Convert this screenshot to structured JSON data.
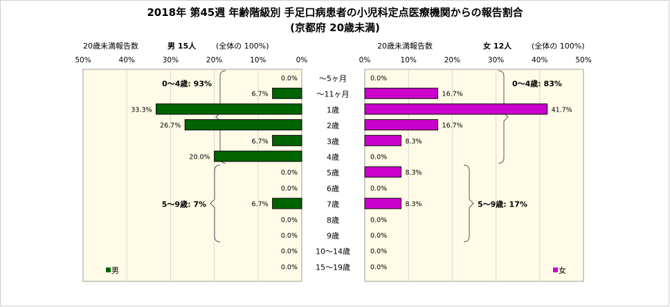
{
  "chart_data": {
    "type": "bar",
    "title": "2018年 第45週 年齢階級別 手足口病患者の小児科定点医療機関からの報告割合",
    "subtitle": "(京都府 20歳未満)",
    "categories": [
      "～5ヶ月",
      "～11ヶ月",
      "1歳",
      "2歳",
      "3歳",
      "4歳",
      "5歳",
      "6歳",
      "7歳",
      "8歳",
      "9歳",
      "10～14歳",
      "15～19歳"
    ],
    "xlim": [
      0,
      50
    ],
    "ticks": [
      0,
      10,
      20,
      30,
      40,
      50
    ],
    "tick_labels": [
      "0%",
      "10%",
      "20%",
      "30%",
      "40%",
      "50%"
    ],
    "series": [
      {
        "name": "男",
        "header_label": "20歳未満報告数",
        "header_count": "男 15人",
        "header_total": "(全体の 100%)",
        "color": "#006400",
        "values": [
          0.0,
          6.7,
          33.3,
          26.7,
          6.7,
          20.0,
          0.0,
          0.0,
          6.7,
          0.0,
          0.0,
          0.0,
          0.0
        ],
        "value_labels": [
          "0.0%",
          "6.7%",
          "33.3%",
          "26.7%",
          "6.7%",
          "20.0%",
          "0.0%",
          "0.0%",
          "6.7%",
          "0.0%",
          "0.0%",
          "0.0%",
          "0.0%"
        ],
        "groups": [
          {
            "label": "0～4歳: 93%",
            "from": 0,
            "to": 5
          },
          {
            "label": "5～9歳: 7%",
            "from": 6,
            "to": 10
          }
        ]
      },
      {
        "name": "女",
        "header_label": "20歳未満報告数",
        "header_count": "女 12人",
        "header_total": "(全体の 100%)",
        "color": "#cc00cc",
        "values": [
          0.0,
          16.7,
          41.7,
          16.7,
          8.3,
          0.0,
          8.3,
          0.0,
          8.3,
          0.0,
          0.0,
          0.0,
          0.0
        ],
        "value_labels": [
          "0.0%",
          "16.7%",
          "41.7%",
          "16.7%",
          "8.3%",
          "0.0%",
          "8.3%",
          "0.0%",
          "8.3%",
          "0.0%",
          "0.0%",
          "0.0%",
          "0.0%"
        ],
        "groups": [
          {
            "label": "0～4歳: 83%",
            "from": 0,
            "to": 5
          },
          {
            "label": "5～9歳: 17%",
            "from": 6,
            "to": 10
          }
        ]
      }
    ],
    "legend": "bottom-left / bottom-right of each panel",
    "plot_background": "#fffbe6"
  }
}
